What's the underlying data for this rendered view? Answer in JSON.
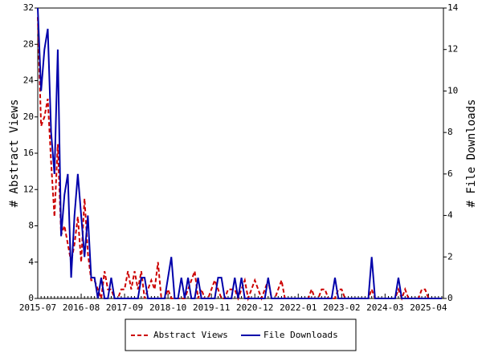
{
  "chart_data": {
    "type": "line",
    "categories": [
      "2015-07",
      null,
      null,
      null,
      null,
      null,
      null,
      null,
      null,
      null,
      null,
      null,
      null,
      "2016-08",
      null,
      null,
      null,
      null,
      null,
      null,
      null,
      null,
      null,
      null,
      null,
      null,
      "2017-09",
      null,
      null,
      null,
      null,
      null,
      null,
      null,
      null,
      null,
      null,
      null,
      null,
      "2018-10",
      null,
      null,
      null,
      null,
      null,
      null,
      null,
      null,
      null,
      null,
      null,
      null,
      "2019-11",
      null,
      null,
      null,
      null,
      null,
      null,
      null,
      null,
      null,
      null,
      null,
      null,
      "2020-12",
      null,
      null,
      null,
      null,
      null,
      null,
      null,
      null,
      null,
      null,
      null,
      null,
      "2022-01",
      null,
      null,
      null,
      null,
      null,
      null,
      null,
      null,
      null,
      null,
      null,
      null,
      "2023-02",
      null,
      null,
      null,
      null,
      null,
      null,
      null,
      null,
      null,
      null,
      null,
      null,
      "2024-03",
      null,
      null,
      null,
      null,
      null,
      null,
      null,
      null,
      null,
      null,
      null,
      null,
      "2025-04",
      null,
      null,
      null,
      null
    ],
    "series": [
      {
        "name": "Abstract Views",
        "color": "#cc0000",
        "dash": true,
        "axis": "y",
        "values": [
          31,
          19,
          20,
          22,
          15,
          9,
          17,
          7,
          8,
          6,
          4,
          6,
          9,
          4,
          11,
          5,
          2,
          2,
          1,
          0,
          3,
          1,
          1,
          0,
          0,
          1,
          1,
          3,
          1,
          3,
          1,
          3,
          0,
          1,
          2,
          1,
          4,
          0,
          0,
          1,
          0,
          0,
          0,
          0,
          0,
          1,
          2,
          3,
          0,
          1,
          0,
          0,
          1,
          2,
          1,
          0,
          0,
          1,
          1,
          1,
          0,
          1,
          2,
          0,
          1,
          2,
          1,
          0,
          1,
          2,
          0,
          0,
          1,
          2,
          0,
          0,
          0,
          0,
          0,
          0,
          0,
          0,
          1,
          0,
          0,
          1,
          1,
          0,
          0,
          0,
          1,
          1,
          0,
          0,
          0,
          0,
          0,
          0,
          0,
          0,
          1,
          0,
          0,
          0,
          0,
          0,
          0,
          0,
          1,
          0,
          1,
          0,
          0,
          0,
          0,
          1,
          1,
          0,
          0,
          0,
          0,
          0
        ]
      },
      {
        "name": "File Downloads",
        "color": "#0000aa",
        "dash": false,
        "axis": "y2",
        "values": [
          14,
          10,
          12,
          13,
          8,
          6,
          12,
          3,
          5,
          6,
          1,
          4,
          6,
          4,
          2,
          4,
          1,
          1,
          0,
          1,
          0,
          0,
          1,
          0,
          0,
          0,
          0,
          0,
          0,
          0,
          0,
          1,
          1,
          0,
          0,
          0,
          0,
          0,
          0,
          1,
          2,
          0,
          0,
          1,
          0,
          1,
          0,
          0,
          1,
          0,
          0,
          0,
          0,
          0,
          1,
          1,
          0,
          0,
          0,
          1,
          0,
          1,
          0,
          0,
          0,
          0,
          0,
          0,
          0,
          1,
          0,
          0,
          0,
          0,
          0,
          0,
          0,
          0,
          0,
          0,
          0,
          0,
          0,
          0,
          0,
          0,
          0,
          0,
          0,
          1,
          0,
          0,
          0,
          0,
          0,
          0,
          0,
          0,
          0,
          0,
          2,
          0,
          0,
          0,
          0,
          0,
          0,
          0,
          1,
          0,
          0,
          0,
          0,
          0,
          0,
          0,
          0,
          0,
          0,
          0,
          0,
          0
        ]
      }
    ],
    "ylabel": "# Abstract Views",
    "y2label": "# File Downloads",
    "ylim": [
      0,
      32
    ],
    "yticks": [
      0,
      4,
      8,
      12,
      16,
      20,
      24,
      28,
      32
    ],
    "y2lim": [
      0,
      14
    ],
    "y2ticks": [
      0,
      2,
      4,
      6,
      8,
      10,
      12,
      14
    ],
    "legend": "bottom"
  }
}
